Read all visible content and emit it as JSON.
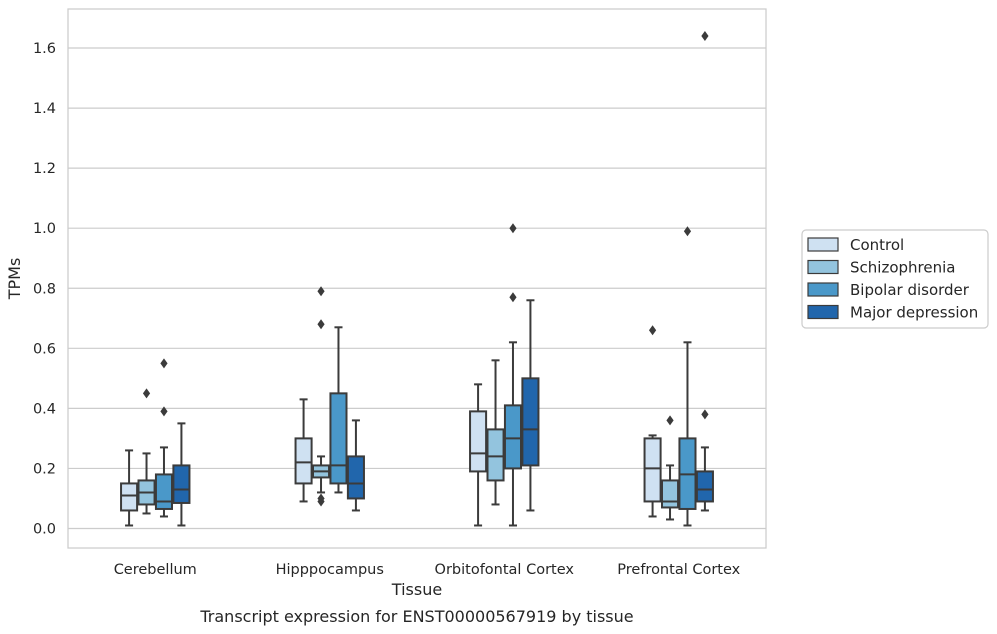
{
  "caption": "Transcript expression for ENST00000567919 by tissue",
  "chart_data": {
    "type": "boxplot",
    "title": "",
    "xlabel": "Tissue",
    "ylabel": "TPMs",
    "ylim": [
      -0.065,
      1.73
    ],
    "yticks": [
      0.0,
      0.2,
      0.4,
      0.6,
      0.8,
      1.0,
      1.2,
      1.4,
      1.6
    ],
    "ytick_labels": [
      "0.0",
      "0.2",
      "0.4",
      "0.6",
      "0.8",
      "1.0",
      "1.2",
      "1.4",
      "1.6"
    ],
    "grid": "horizontal",
    "legend_position": "right",
    "categories": [
      "Cerebellum",
      "Hipppocampus",
      "Orbitofontal Cortex",
      "Prefrontal Cortex"
    ],
    "series": [
      {
        "name": "Control",
        "color": "#cfe1f2",
        "boxes": [
          {
            "whislo": 0.01,
            "q1": 0.06,
            "med": 0.11,
            "q3": 0.15,
            "whishi": 0.26,
            "fliers": []
          },
          {
            "whislo": 0.09,
            "q1": 0.15,
            "med": 0.22,
            "q3": 0.3,
            "whishi": 0.43,
            "fliers": []
          },
          {
            "whislo": 0.01,
            "q1": 0.19,
            "med": 0.25,
            "q3": 0.39,
            "whishi": 0.48,
            "fliers": []
          },
          {
            "whislo": 0.04,
            "q1": 0.09,
            "med": 0.2,
            "q3": 0.3,
            "whishi": 0.31,
            "fliers": [
              0.66
            ]
          }
        ]
      },
      {
        "name": "Schizophrenia",
        "color": "#93c4de",
        "boxes": [
          {
            "whislo": 0.05,
            "q1": 0.08,
            "med": 0.12,
            "q3": 0.16,
            "whishi": 0.25,
            "fliers": [
              0.45
            ]
          },
          {
            "whislo": 0.12,
            "q1": 0.17,
            "med": 0.19,
            "q3": 0.21,
            "whishi": 0.24,
            "fliers": [
              0.09,
              0.1,
              0.79,
              0.68
            ]
          },
          {
            "whislo": 0.08,
            "q1": 0.16,
            "med": 0.24,
            "q3": 0.33,
            "whishi": 0.56,
            "fliers": []
          },
          {
            "whislo": 0.03,
            "q1": 0.07,
            "med": 0.09,
            "q3": 0.16,
            "whishi": 0.21,
            "fliers": [
              0.36
            ]
          }
        ]
      },
      {
        "name": "Bipolar disorder",
        "color": "#4a98c9",
        "boxes": [
          {
            "whislo": 0.04,
            "q1": 0.065,
            "med": 0.09,
            "q3": 0.18,
            "whishi": 0.27,
            "fliers": [
              0.39,
              0.55
            ]
          },
          {
            "whislo": 0.12,
            "q1": 0.15,
            "med": 0.21,
            "q3": 0.45,
            "whishi": 0.67,
            "fliers": []
          },
          {
            "whislo": 0.01,
            "q1": 0.2,
            "med": 0.3,
            "q3": 0.41,
            "whishi": 0.62,
            "fliers": [
              0.77,
              1.0
            ]
          },
          {
            "whislo": 0.01,
            "q1": 0.065,
            "med": 0.18,
            "q3": 0.3,
            "whishi": 0.62,
            "fliers": [
              0.99
            ]
          }
        ]
      },
      {
        "name": "Major depression",
        "color": "#2166ac",
        "boxes": [
          {
            "whislo": 0.01,
            "q1": 0.085,
            "med": 0.13,
            "q3": 0.21,
            "whishi": 0.35,
            "fliers": []
          },
          {
            "whislo": 0.06,
            "q1": 0.1,
            "med": 0.15,
            "q3": 0.24,
            "whishi": 0.36,
            "fliers": []
          },
          {
            "whislo": 0.06,
            "q1": 0.21,
            "med": 0.33,
            "q3": 0.5,
            "whishi": 0.76,
            "fliers": []
          },
          {
            "whislo": 0.06,
            "q1": 0.09,
            "med": 0.13,
            "q3": 0.19,
            "whishi": 0.27,
            "fliers": [
              0.38,
              1.64
            ]
          }
        ]
      }
    ]
  }
}
